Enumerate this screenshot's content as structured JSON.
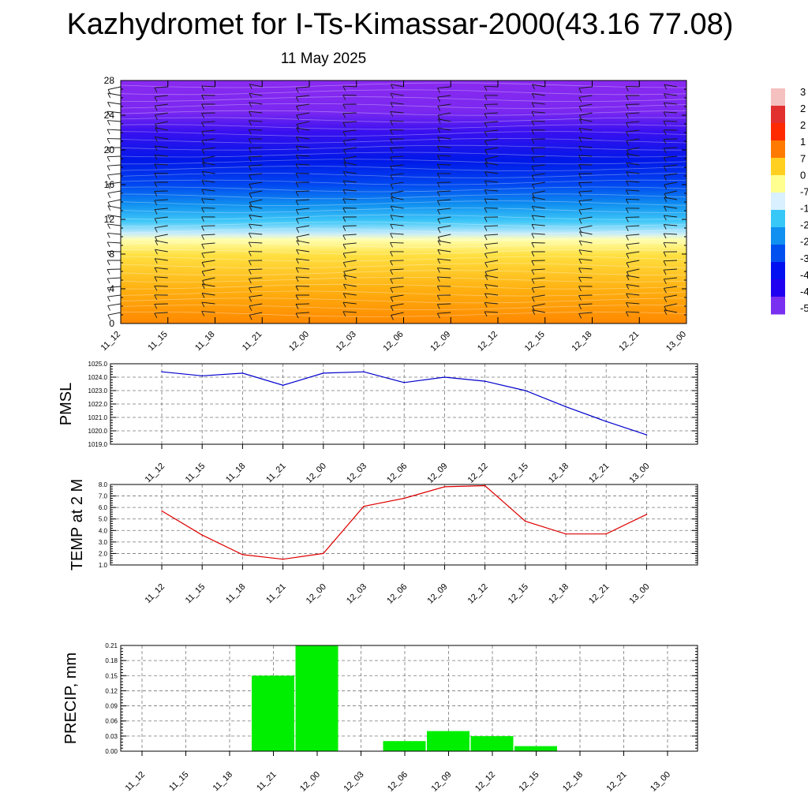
{
  "title": "Kazhydromet for I-Ts-Kimassar-2000(43.16 77.08)",
  "date": "11 May 2025",
  "chart_data": [
    {
      "type": "heatmap",
      "name": "vertical cross-section",
      "x_ticks": [
        "11_12",
        "11_15",
        "11_18",
        "11_21",
        "12_00",
        "12_03",
        "12_06",
        "12_09",
        "12_12",
        "12_15",
        "12_18",
        "12_21",
        "13_00"
      ],
      "y_ticks": [
        0,
        4,
        8,
        12,
        16,
        20,
        24,
        28
      ],
      "ylim": [
        0,
        28
      ],
      "colorbar_labels": [
        "3",
        "2",
        "2",
        "1",
        "7",
        "0",
        "-7",
        "-1",
        "-2",
        "-2",
        "-3",
        "-4",
        "-4",
        "-5"
      ],
      "colorbar_colors": [
        "#f5c0c0",
        "#e23030",
        "#ff2a00",
        "#ff7a00",
        "#ffd020",
        "#ffff90",
        "#d8f0ff",
        "#38c8f8",
        "#1090f0",
        "#0050f0",
        "#0010f0",
        "#2000f0",
        "#7a30f0"
      ],
      "wind_barbs": true
    },
    {
      "type": "line",
      "ylabel": "PMSL",
      "categories": [
        "11_12",
        "11_15",
        "11_18",
        "11_21",
        "12_00",
        "12_03",
        "12_06",
        "12_09",
        "12_12",
        "12_15",
        "12_18",
        "12_21",
        "13_00"
      ],
      "values": [
        1024.4,
        1024.1,
        1024.3,
        1023.4,
        1024.3,
        1024.4,
        1023.6,
        1024.0,
        1023.7,
        1023.0,
        1021.8,
        1020.7,
        1019.7
      ],
      "ylim": [
        1019.0,
        1025.0
      ],
      "y_ticks": [
        "1019.0",
        "1020.0",
        "1021.0",
        "1022.0",
        "1023.0",
        "1024.0",
        "1025.0"
      ],
      "color": "#0000cc",
      "grid": true
    },
    {
      "type": "line",
      "ylabel": "TEMP at 2 M",
      "categories": [
        "11_12",
        "11_15",
        "11_18",
        "11_21",
        "12_00",
        "12_03",
        "12_06",
        "12_09",
        "12_12",
        "12_15",
        "12_18",
        "12_21",
        "13_00"
      ],
      "values": [
        5.7,
        3.6,
        1.9,
        1.5,
        2.0,
        6.1,
        6.8,
        7.8,
        7.9,
        4.8,
        3.7,
        3.7,
        5.4
      ],
      "ylim": [
        1.0,
        8.0
      ],
      "y_ticks": [
        "1.0",
        "2.0",
        "3.0",
        "4.0",
        "5.0",
        "6.0",
        "7.0",
        "8.0"
      ],
      "color": "#dd0000",
      "grid": true
    },
    {
      "type": "bar",
      "ylabel": "PRECIP, mm",
      "categories": [
        "11_12",
        "11_15",
        "11_18",
        "11_21",
        "12_00",
        "12_03",
        "12_06",
        "12_09",
        "12_12",
        "12_15",
        "12_18",
        "12_21",
        "13_00"
      ],
      "values": [
        0,
        0,
        0,
        0.15,
        0.21,
        0,
        0.02,
        0.04,
        0.03,
        0.01,
        0,
        0,
        0
      ],
      "ylim": [
        0,
        0.21
      ],
      "y_ticks": [
        "0.00",
        "0.03",
        "0.06",
        "0.09",
        "0.12",
        "0.15",
        "0.18",
        "0.21"
      ],
      "color": "#00ee00",
      "grid": true
    }
  ]
}
